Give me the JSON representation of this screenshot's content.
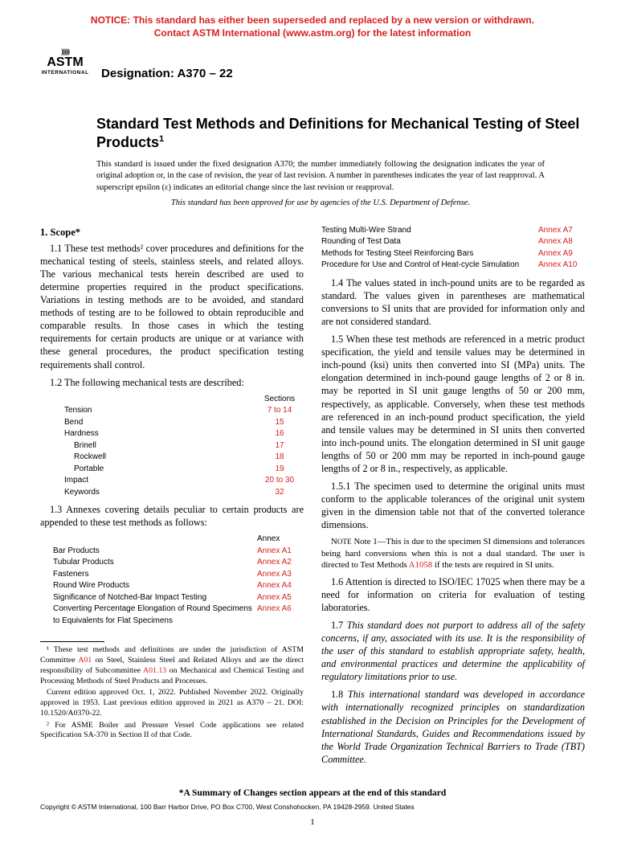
{
  "colors": {
    "notice": "#d6201f",
    "link": "#d6201f",
    "text": "#000000",
    "bg": "#ffffff"
  },
  "notice": {
    "line1": "NOTICE: This standard has either been superseded and replaced by a new version or withdrawn.",
    "line2": "Contact ASTM International (www.astm.org) for the latest information"
  },
  "logo": {
    "word": "ASTM",
    "sub": "INTERNATIONAL"
  },
  "designation": "Designation: A370 – 22",
  "title": "Standard Test Methods and Definitions for Mechanical Testing of Steel Products",
  "title_sup": "1",
  "issuance": "This standard is issued under the fixed designation A370; the number immediately following the designation indicates the year of original adoption or, in the case of revision, the year of last revision. A number in parentheses indicates the year of last reapproval. A superscript epsilon (ε) indicates an editorial change since the last revision or reapproval.",
  "approved": "This standard has been approved for use by agencies of the U.S. Department of Defense.",
  "scope": {
    "heading": "1. Scope*",
    "p1_1": "1.1 These test methods² cover procedures and definitions for the mechanical testing of steels, stainless steels, and related alloys. The various mechanical tests herein described are used to determine properties required in the product specifications. Variations in testing methods are to be avoided, and standard methods of testing are to be followed to obtain reproducible and comparable results. In those cases in which the testing requirements for certain products are unique or at variance with these general procedures, the product specification testing requirements shall control.",
    "p1_2_intro": "1.2 The following mechanical tests are described:",
    "tests_header": "Sections",
    "tests": [
      {
        "label": "Tension",
        "sections": "7 to 14",
        "indent": false
      },
      {
        "label": "Bend",
        "sections": "15",
        "indent": false
      },
      {
        "label": "Hardness",
        "sections": "16",
        "indent": false
      },
      {
        "label": "Brinell",
        "sections": "17",
        "indent": true
      },
      {
        "label": "Rockwell",
        "sections": "18",
        "indent": true
      },
      {
        "label": "Portable",
        "sections": "19",
        "indent": true
      },
      {
        "label": "Impact",
        "sections": "20 to 30",
        "indent": false
      },
      {
        "label": "Keywords",
        "sections": "32",
        "indent": false
      }
    ],
    "p1_3_intro": "1.3 Annexes covering details peculiar to certain products are appended to these test methods as follows:",
    "annex_header": "Annex",
    "annexes_left": [
      {
        "label": "Bar Products",
        "annex": "Annex A1"
      },
      {
        "label": "Tubular Products",
        "annex": "Annex A2"
      },
      {
        "label": "Fasteners",
        "annex": "Annex A3"
      },
      {
        "label": "Round Wire Products",
        "annex": "Annex A4"
      },
      {
        "label": "Significance of Notched-Bar Impact Testing",
        "annex": "Annex A5"
      },
      {
        "label": "Converting Percentage Elongation of Round Specimens to Equivalents for Flat Specimens",
        "annex": "Annex A6"
      }
    ],
    "annexes_right": [
      {
        "label": "Testing Multi-Wire Strand",
        "annex": "Annex A7"
      },
      {
        "label": "Rounding of Test Data",
        "annex": "Annex A8"
      },
      {
        "label": "Methods for Testing Steel Reinforcing Bars",
        "annex": "Annex A9"
      },
      {
        "label": "Procedure for Use and Control of Heat-cycle Simulation",
        "annex": "Annex A10"
      }
    ],
    "p1_4": "1.4 The values stated in inch-pound units are to be regarded as standard. The values given in parentheses are mathematical conversions to SI units that are provided for information only and are not considered standard.",
    "p1_5": "1.5 When these test methods are referenced in a metric product specification, the yield and tensile values may be determined in inch-pound (ksi) units then converted into SI (MPa) units. The elongation determined in inch-pound gauge lengths of 2 or 8 in. may be reported in SI unit gauge lengths of 50 or 200 mm, respectively, as applicable. Conversely, when these test methods are referenced in an inch-pound product specification, the yield and tensile values may be determined in SI units then converted into inch-pound units. The elongation determined in SI unit gauge lengths of 50 or 200 mm may be reported in inch-pound gauge lengths of 2 or 8 in., respectively, as applicable.",
    "p1_5_1": "1.5.1 The specimen used to determine the original units must conform to the applicable tolerances of the original unit system given in the dimension table not that of the converted tolerance dimensions.",
    "note1_pre": "Note 1—This is due to the specimen SI dimensions and tolerances being hard conversions when this is not a dual standard. The user is directed to Test Methods ",
    "note1_link": "A1058",
    "note1_post": " if the tests are required in SI units.",
    "p1_6": "1.6 Attention is directed to ISO/IEC 17025 when there may be a need for information on criteria for evaluation of testing laboratories.",
    "p1_7": "1.7 This standard does not purport to address all of the safety concerns, if any, associated with its use. It is the responsibility of the user of this standard to establish appropriate safety, health, and environmental practices and determine the applicability of regulatory limitations prior to use.",
    "p1_8": "1.8 This international standard was developed in accordance with internationally recognized principles on standardization established in the Decision on Principles for the Development of International Standards, Guides and Recommendations issued by the World Trade Organization Technical Barriers to Trade (TBT) Committee."
  },
  "footnotes": {
    "f1_pre": "¹ These test methods and definitions are under the jurisdiction of ASTM Committee ",
    "f1_link1": "A01",
    "f1_mid": " on Steel, Stainless Steel and Related Alloys and are the direct responsibility of Subcommittee ",
    "f1_link2": "A01.13",
    "f1_post": " on Mechanical and Chemical Testing and Processing Methods of Steel Products and Processes.",
    "f1b": "Current edition approved Oct. 1, 2022. Published November 2022. Originally approved in 1953. Last previous edition approved in 2021 as A370 – 21. DOI: 10.1520/A0370-22.",
    "f2": "² For ASME Boiler and Pressure Vessel Code applications see related Specification SA-370 in Section II of that Code."
  },
  "summary": "*A Summary of Changes section appears at the end of this standard",
  "copyright": "Copyright © ASTM International, 100 Barr Harbor Drive, PO Box C700, West Conshohocken, PA 19428-2959. United States",
  "pagenum": "1"
}
